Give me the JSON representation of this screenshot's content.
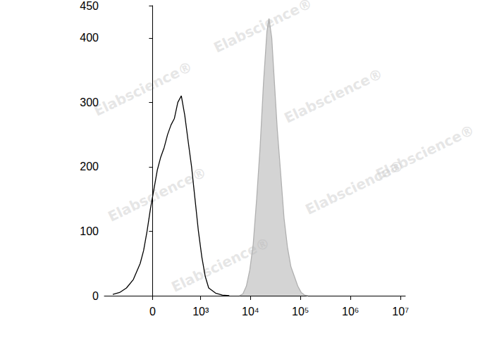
{
  "chart_data": {
    "type": "line",
    "watermark": "Elabscience®",
    "xlim": [
      -1000,
      12500000
    ],
    "xticks": [
      0,
      {
        "value": 1000,
        "label": "10³"
      },
      {
        "value": 10000,
        "label": "10⁴"
      },
      {
        "value": 100000,
        "label": "10⁵"
      },
      {
        "value": 1000000,
        "label": "10⁶"
      },
      {
        "value": 10000000,
        "label": "10⁷"
      }
    ],
    "ylim": [
      0,
      450
    ],
    "yticks": [
      0,
      100,
      200,
      300,
      400
    ],
    "grid": false,
    "series": [
      {
        "color": "#000000",
        "x": [
          -668,
          -477,
          -332,
          -221,
          -132,
          -93,
          -56,
          -21,
          14,
          49,
          85,
          124,
          165,
          211,
          261,
          318,
          385,
          460,
          545,
          646,
          762,
          897,
          1054,
          1236,
          1452,
          1998,
          2741,
          3762
        ],
        "values": [
          2,
          5,
          12,
          25,
          50,
          70,
          100,
          135,
          165,
          195,
          215,
          230,
          250,
          265,
          275,
          300,
          310,
          280,
          240,
          200,
          150,
          100,
          60,
          30,
          12,
          4,
          1,
          0
        ]
      },
      {
        "color": "#b0b0b0",
        "type": "area",
        "x": [
          6040,
          7070,
          8280,
          9690,
          11350,
          13290,
          15570,
          18220,
          21350,
          23460,
          26630,
          30160,
          34230,
          40130,
          46930,
          55000,
          64330,
          75400,
          88190,
          103400,
          120900,
          141700
        ],
        "values": [
          0,
          3,
          15,
          40,
          80,
          150,
          230,
          330,
          410,
          430,
          400,
          330,
          260,
          190,
          120,
          75,
          45,
          30,
          15,
          5,
          1,
          0
        ]
      }
    ]
  }
}
